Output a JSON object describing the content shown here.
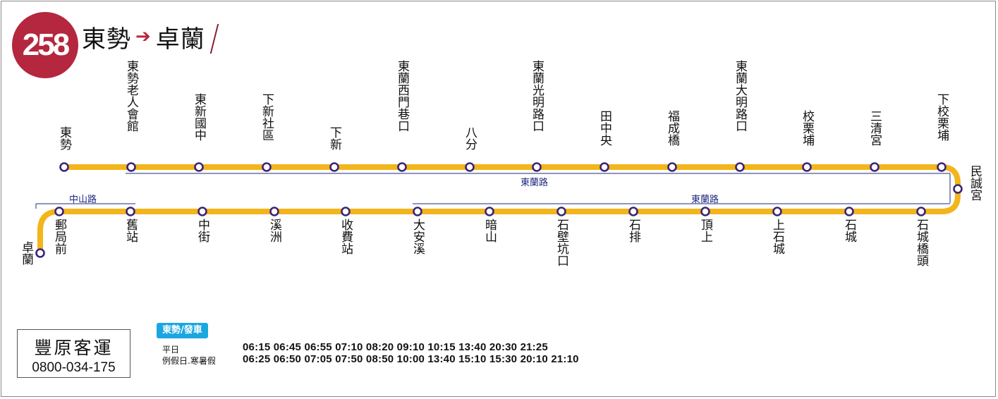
{
  "route": {
    "number": "258",
    "origin": "東勢",
    "destination": "卓蘭",
    "arrow": "➔"
  },
  "colors": {
    "route_line": "#f2b51b",
    "stop_ring": "#3a2478",
    "badge": "#b5263f",
    "road_line": "#1f2a80",
    "timetable_badge": "#1aa7e0"
  },
  "stops": [
    "東勢",
    "東勢老人會館",
    "東新國中",
    "下新社區",
    "下新",
    "東蘭西門巷口",
    "八分",
    "東蘭光明路口",
    "田中央",
    "福成橋",
    "東蘭大明路口",
    "校栗埔",
    "三清宮",
    "下校栗埔",
    "民誠宮",
    "石城橋頭",
    "石城",
    "上石城",
    "頂上",
    "石排",
    "石壁坑口",
    "暗山",
    "大安溪",
    "收費站",
    "溪洲",
    "中街",
    "舊站",
    "郵局前",
    "卓蘭"
  ],
  "roads": [
    "東蘭路",
    "東蘭路",
    "中山路"
  ],
  "company": {
    "name": "豐原客運",
    "phone": "0800-034-175"
  },
  "timetable": {
    "badge": "東勢/發車",
    "rows": [
      {
        "label": "平日",
        "times": "06:15 06:45 06:55 07:10 08:20 09:10 10:15 13:40 20:30 21:25"
      },
      {
        "label": "例假日.寒暑假",
        "times": "06:25 06:50 07:05 07:50 08:50 10:00 13:40 15:10 15:30 20:10 21:10"
      }
    ]
  }
}
